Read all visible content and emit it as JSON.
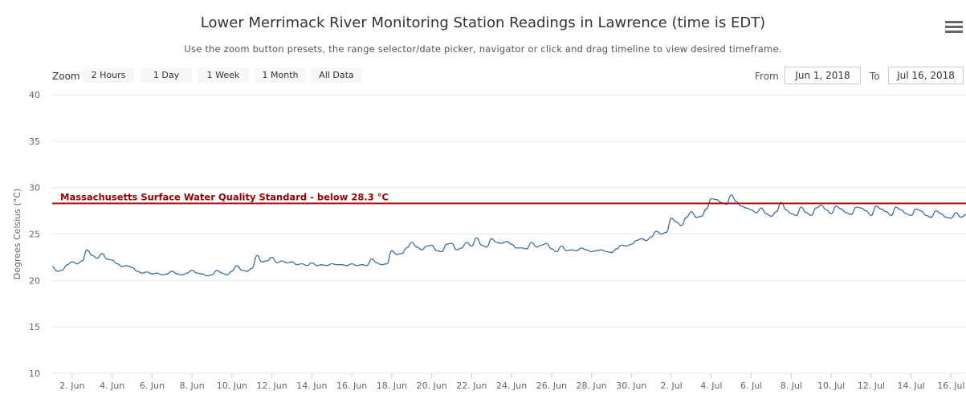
{
  "title": "Lower Merrimack River Monitoring Station Readings in Lawrence (time is EDT)",
  "subtitle": "Use the zoom button presets, the range selector/date picker, navigator or click and drag timeline to view desired timeframe.",
  "zoom": {
    "label": "Zoom",
    "buttons": [
      "2 Hours",
      "1 Day",
      "1 Week",
      "1 Month",
      "All Data"
    ]
  },
  "range": {
    "from_label": "From",
    "from_value": "Jun 1, 2018",
    "to_label": "To",
    "to_value": "Jul 16, 2018"
  },
  "colors": {
    "series": "#3a6fa5",
    "standard_line": "#b01010",
    "standard_label": "#990000",
    "grid": "#e6e6e6"
  },
  "chart_data": {
    "type": "line",
    "ylabel": "Degrees Celsius (°C)",
    "ylim": [
      10,
      40
    ],
    "yticks": [
      10,
      15,
      20,
      25,
      30,
      35,
      40
    ],
    "xlim": [
      "2018-06-01",
      "2018-07-16 18:00"
    ],
    "xticks": [
      {
        "date": "2018-06-02",
        "label": "2. Jun"
      },
      {
        "date": "2018-06-04",
        "label": "4. Jun"
      },
      {
        "date": "2018-06-06",
        "label": "6. Jun"
      },
      {
        "date": "2018-06-08",
        "label": "8. Jun"
      },
      {
        "date": "2018-06-10",
        "label": "10. Jun"
      },
      {
        "date": "2018-06-12",
        "label": "12. Jun"
      },
      {
        "date": "2018-06-14",
        "label": "14. Jun"
      },
      {
        "date": "2018-06-16",
        "label": "16. Jun"
      },
      {
        "date": "2018-06-18",
        "label": "18. Jun"
      },
      {
        "date": "2018-06-20",
        "label": "20. Jun"
      },
      {
        "date": "2018-06-22",
        "label": "22. Jun"
      },
      {
        "date": "2018-06-24",
        "label": "24. Jun"
      },
      {
        "date": "2018-06-26",
        "label": "26. Jun"
      },
      {
        "date": "2018-06-28",
        "label": "28. Jun"
      },
      {
        "date": "2018-06-30",
        "label": "30. Jun"
      },
      {
        "date": "2018-07-02",
        "label": "2. Jul"
      },
      {
        "date": "2018-07-04",
        "label": "4. Jul"
      },
      {
        "date": "2018-07-06",
        "label": "6. Jul"
      },
      {
        "date": "2018-07-08",
        "label": "8. Jul"
      },
      {
        "date": "2018-07-10",
        "label": "10. Jul"
      },
      {
        "date": "2018-07-12",
        "label": "12. Jul"
      },
      {
        "date": "2018-07-14",
        "label": "14. Jul"
      },
      {
        "date": "2018-07-16",
        "label": "16. Jul"
      }
    ],
    "plot_lines": [
      {
        "value": 28.3,
        "label": "Massachusetts Surface Water Quality Standard - below 28.3 °C"
      }
    ],
    "series": [
      {
        "values": [
          {
            "x": "2018-06-01 00:00",
            "y": 21.5
          },
          {
            "x": "2018-06-01 06:00",
            "y": 21.0
          },
          {
            "x": "2018-06-01 12:00",
            "y": 21.1
          },
          {
            "x": "2018-06-01 18:00",
            "y": 21.7
          },
          {
            "x": "2018-06-02 00:00",
            "y": 22.0
          },
          {
            "x": "2018-06-02 06:00",
            "y": 21.8
          },
          {
            "x": "2018-06-02 12:00",
            "y": 22.1
          },
          {
            "x": "2018-06-02 18:00",
            "y": 23.3
          },
          {
            "x": "2018-06-03 00:00",
            "y": 22.7
          },
          {
            "x": "2018-06-03 06:00",
            "y": 22.4
          },
          {
            "x": "2018-06-03 12:00",
            "y": 22.9
          },
          {
            "x": "2018-06-03 18:00",
            "y": 22.3
          },
          {
            "x": "2018-06-04 00:00",
            "y": 22.2
          },
          {
            "x": "2018-06-04 06:00",
            "y": 21.8
          },
          {
            "x": "2018-06-04 12:00",
            "y": 21.5
          },
          {
            "x": "2018-06-04 18:00",
            "y": 21.6
          },
          {
            "x": "2018-06-05 00:00",
            "y": 21.4
          },
          {
            "x": "2018-06-05 06:00",
            "y": 21.0
          },
          {
            "x": "2018-06-05 12:00",
            "y": 20.8
          },
          {
            "x": "2018-06-05 18:00",
            "y": 20.9
          },
          {
            "x": "2018-06-06 00:00",
            "y": 20.7
          },
          {
            "x": "2018-06-06 06:00",
            "y": 20.8
          },
          {
            "x": "2018-06-06 12:00",
            "y": 20.6
          },
          {
            "x": "2018-06-06 18:00",
            "y": 20.7
          },
          {
            "x": "2018-06-07 00:00",
            "y": 21.0
          },
          {
            "x": "2018-06-07 06:00",
            "y": 20.7
          },
          {
            "x": "2018-06-07 12:00",
            "y": 20.6
          },
          {
            "x": "2018-06-07 18:00",
            "y": 20.8
          },
          {
            "x": "2018-06-08 00:00",
            "y": 21.1
          },
          {
            "x": "2018-06-08 06:00",
            "y": 20.8
          },
          {
            "x": "2018-06-08 12:00",
            "y": 20.7
          },
          {
            "x": "2018-06-08 18:00",
            "y": 20.5
          },
          {
            "x": "2018-06-09 00:00",
            "y": 20.6
          },
          {
            "x": "2018-06-09 06:00",
            "y": 21.1
          },
          {
            "x": "2018-06-09 12:00",
            "y": 20.8
          },
          {
            "x": "2018-06-09 18:00",
            "y": 20.6
          },
          {
            "x": "2018-06-10 00:00",
            "y": 21.0
          },
          {
            "x": "2018-06-10 06:00",
            "y": 21.6
          },
          {
            "x": "2018-06-10 12:00",
            "y": 21.1
          },
          {
            "x": "2018-06-10 18:00",
            "y": 21.0
          },
          {
            "x": "2018-06-11 00:00",
            "y": 21.3
          },
          {
            "x": "2018-06-11 06:00",
            "y": 22.7
          },
          {
            "x": "2018-06-11 12:00",
            "y": 22.0
          },
          {
            "x": "2018-06-11 18:00",
            "y": 22.1
          },
          {
            "x": "2018-06-12 00:00",
            "y": 22.5
          },
          {
            "x": "2018-06-12 06:00",
            "y": 21.9
          },
          {
            "x": "2018-06-12 12:00",
            "y": 22.1
          },
          {
            "x": "2018-06-12 18:00",
            "y": 21.9
          },
          {
            "x": "2018-06-13 00:00",
            "y": 22.0
          },
          {
            "x": "2018-06-13 06:00",
            "y": 21.7
          },
          {
            "x": "2018-06-13 12:00",
            "y": 21.8
          },
          {
            "x": "2018-06-13 18:00",
            "y": 21.6
          },
          {
            "x": "2018-06-14 00:00",
            "y": 21.9
          },
          {
            "x": "2018-06-14 06:00",
            "y": 21.6
          },
          {
            "x": "2018-06-14 12:00",
            "y": 21.7
          },
          {
            "x": "2018-06-14 18:00",
            "y": 21.6
          },
          {
            "x": "2018-06-15 00:00",
            "y": 21.8
          },
          {
            "x": "2018-06-15 06:00",
            "y": 21.7
          },
          {
            "x": "2018-06-15 12:00",
            "y": 21.7
          },
          {
            "x": "2018-06-15 18:00",
            "y": 21.6
          },
          {
            "x": "2018-06-16 00:00",
            "y": 21.8
          },
          {
            "x": "2018-06-16 06:00",
            "y": 21.6
          },
          {
            "x": "2018-06-16 12:00",
            "y": 21.7
          },
          {
            "x": "2018-06-16 18:00",
            "y": 21.6
          },
          {
            "x": "2018-06-17 00:00",
            "y": 22.3
          },
          {
            "x": "2018-06-17 06:00",
            "y": 21.9
          },
          {
            "x": "2018-06-17 12:00",
            "y": 21.7
          },
          {
            "x": "2018-06-17 18:00",
            "y": 21.8
          },
          {
            "x": "2018-06-18 00:00",
            "y": 23.2
          },
          {
            "x": "2018-06-18 06:00",
            "y": 22.8
          },
          {
            "x": "2018-06-18 12:00",
            "y": 22.9
          },
          {
            "x": "2018-06-18 18:00",
            "y": 23.5
          },
          {
            "x": "2018-06-19 00:00",
            "y": 24.1
          },
          {
            "x": "2018-06-19 06:00",
            "y": 23.6
          },
          {
            "x": "2018-06-19 12:00",
            "y": 23.3
          },
          {
            "x": "2018-06-19 18:00",
            "y": 23.7
          },
          {
            "x": "2018-06-20 00:00",
            "y": 23.8
          },
          {
            "x": "2018-06-20 06:00",
            "y": 23.2
          },
          {
            "x": "2018-06-20 12:00",
            "y": 23.1
          },
          {
            "x": "2018-06-20 18:00",
            "y": 23.9
          },
          {
            "x": "2018-06-21 00:00",
            "y": 24.0
          },
          {
            "x": "2018-06-21 06:00",
            "y": 23.3
          },
          {
            "x": "2018-06-21 12:00",
            "y": 23.5
          },
          {
            "x": "2018-06-21 18:00",
            "y": 24.1
          },
          {
            "x": "2018-06-22 00:00",
            "y": 23.7
          },
          {
            "x": "2018-06-22 06:00",
            "y": 24.6
          },
          {
            "x": "2018-06-22 12:00",
            "y": 23.8
          },
          {
            "x": "2018-06-22 18:00",
            "y": 23.6
          },
          {
            "x": "2018-06-23 00:00",
            "y": 24.5
          },
          {
            "x": "2018-06-23 06:00",
            "y": 24.1
          },
          {
            "x": "2018-06-23 12:00",
            "y": 24.0
          },
          {
            "x": "2018-06-23 18:00",
            "y": 24.2
          },
          {
            "x": "2018-06-24 00:00",
            "y": 23.9
          },
          {
            "x": "2018-06-24 06:00",
            "y": 23.5
          },
          {
            "x": "2018-06-24 12:00",
            "y": 23.5
          },
          {
            "x": "2018-06-24 18:00",
            "y": 23.4
          },
          {
            "x": "2018-06-25 00:00",
            "y": 24.1
          },
          {
            "x": "2018-06-25 06:00",
            "y": 23.6
          },
          {
            "x": "2018-06-25 12:00",
            "y": 23.8
          },
          {
            "x": "2018-06-25 18:00",
            "y": 24.0
          },
          {
            "x": "2018-06-26 00:00",
            "y": 23.4
          },
          {
            "x": "2018-06-26 06:00",
            "y": 23.1
          },
          {
            "x": "2018-06-26 12:00",
            "y": 23.7
          },
          {
            "x": "2018-06-26 18:00",
            "y": 23.2
          },
          {
            "x": "2018-06-27 00:00",
            "y": 23.3
          },
          {
            "x": "2018-06-27 06:00",
            "y": 23.2
          },
          {
            "x": "2018-06-27 12:00",
            "y": 23.5
          },
          {
            "x": "2018-06-27 18:00",
            "y": 23.3
          },
          {
            "x": "2018-06-28 00:00",
            "y": 23.1
          },
          {
            "x": "2018-06-28 06:00",
            "y": 23.2
          },
          {
            "x": "2018-06-28 12:00",
            "y": 23.3
          },
          {
            "x": "2018-06-28 18:00",
            "y": 23.1
          },
          {
            "x": "2018-06-29 00:00",
            "y": 23.0
          },
          {
            "x": "2018-06-29 06:00",
            "y": 23.4
          },
          {
            "x": "2018-06-29 12:00",
            "y": 23.8
          },
          {
            "x": "2018-06-29 18:00",
            "y": 23.7
          },
          {
            "x": "2018-06-30 00:00",
            "y": 23.9
          },
          {
            "x": "2018-06-30 06:00",
            "y": 24.3
          },
          {
            "x": "2018-06-30 12:00",
            "y": 24.5
          },
          {
            "x": "2018-06-30 18:00",
            "y": 24.3
          },
          {
            "x": "2018-07-01 00:00",
            "y": 24.7
          },
          {
            "x": "2018-07-01 06:00",
            "y": 25.3
          },
          {
            "x": "2018-07-01 12:00",
            "y": 25.0
          },
          {
            "x": "2018-07-01 18:00",
            "y": 25.2
          },
          {
            "x": "2018-07-02 00:00",
            "y": 26.7
          },
          {
            "x": "2018-07-02 06:00",
            "y": 26.3
          },
          {
            "x": "2018-07-02 12:00",
            "y": 25.9
          },
          {
            "x": "2018-07-02 18:00",
            "y": 26.8
          },
          {
            "x": "2018-07-03 00:00",
            "y": 27.4
          },
          {
            "x": "2018-07-03 06:00",
            "y": 26.8
          },
          {
            "x": "2018-07-03 12:00",
            "y": 26.9
          },
          {
            "x": "2018-07-03 18:00",
            "y": 27.7
          },
          {
            "x": "2018-07-04 00:00",
            "y": 28.8
          },
          {
            "x": "2018-07-04 06:00",
            "y": 28.7
          },
          {
            "x": "2018-07-04 12:00",
            "y": 28.4
          },
          {
            "x": "2018-07-04 18:00",
            "y": 28.2
          },
          {
            "x": "2018-07-05 00:00",
            "y": 29.2
          },
          {
            "x": "2018-07-05 06:00",
            "y": 28.5
          },
          {
            "x": "2018-07-05 12:00",
            "y": 28.0
          },
          {
            "x": "2018-07-05 18:00",
            "y": 27.8
          },
          {
            "x": "2018-07-06 00:00",
            "y": 27.6
          },
          {
            "x": "2018-07-06 06:00",
            "y": 27.3
          },
          {
            "x": "2018-07-06 12:00",
            "y": 27.8
          },
          {
            "x": "2018-07-06 18:00",
            "y": 27.2
          },
          {
            "x": "2018-07-07 00:00",
            "y": 26.9
          },
          {
            "x": "2018-07-07 06:00",
            "y": 27.4
          },
          {
            "x": "2018-07-07 12:00",
            "y": 28.4
          },
          {
            "x": "2018-07-07 18:00",
            "y": 27.6
          },
          {
            "x": "2018-07-08 00:00",
            "y": 27.2
          },
          {
            "x": "2018-07-08 06:00",
            "y": 27.0
          },
          {
            "x": "2018-07-08 12:00",
            "y": 27.9
          },
          {
            "x": "2018-07-08 18:00",
            "y": 27.3
          },
          {
            "x": "2018-07-09 00:00",
            "y": 27.0
          },
          {
            "x": "2018-07-09 06:00",
            "y": 27.8
          },
          {
            "x": "2018-07-09 12:00",
            "y": 28.1
          },
          {
            "x": "2018-07-09 18:00",
            "y": 27.6
          },
          {
            "x": "2018-07-10 00:00",
            "y": 27.2
          },
          {
            "x": "2018-07-10 06:00",
            "y": 28.0
          },
          {
            "x": "2018-07-10 12:00",
            "y": 27.7
          },
          {
            "x": "2018-07-10 18:00",
            "y": 27.3
          },
          {
            "x": "2018-07-11 00:00",
            "y": 27.1
          },
          {
            "x": "2018-07-11 06:00",
            "y": 27.9
          },
          {
            "x": "2018-07-11 12:00",
            "y": 27.8
          },
          {
            "x": "2018-07-11 18:00",
            "y": 27.5
          },
          {
            "x": "2018-07-12 00:00",
            "y": 27.0
          },
          {
            "x": "2018-07-12 06:00",
            "y": 28.0
          },
          {
            "x": "2018-07-12 12:00",
            "y": 27.7
          },
          {
            "x": "2018-07-12 18:00",
            "y": 27.4
          },
          {
            "x": "2018-07-13 00:00",
            "y": 27.0
          },
          {
            "x": "2018-07-13 06:00",
            "y": 27.9
          },
          {
            "x": "2018-07-13 12:00",
            "y": 27.6
          },
          {
            "x": "2018-07-13 18:00",
            "y": 27.2
          },
          {
            "x": "2018-07-14 00:00",
            "y": 27.0
          },
          {
            "x": "2018-07-14 06:00",
            "y": 27.7
          },
          {
            "x": "2018-07-14 12:00",
            "y": 27.5
          },
          {
            "x": "2018-07-14 18:00",
            "y": 27.0
          },
          {
            "x": "2018-07-15 00:00",
            "y": 26.8
          },
          {
            "x": "2018-07-15 06:00",
            "y": 27.5
          },
          {
            "x": "2018-07-15 12:00",
            "y": 27.2
          },
          {
            "x": "2018-07-15 18:00",
            "y": 26.8
          },
          {
            "x": "2018-07-16 00:00",
            "y": 26.7
          },
          {
            "x": "2018-07-16 06:00",
            "y": 27.3
          },
          {
            "x": "2018-07-16 12:00",
            "y": 26.8
          },
          {
            "x": "2018-07-16 18:00",
            "y": 27.1
          }
        ]
      }
    ]
  }
}
